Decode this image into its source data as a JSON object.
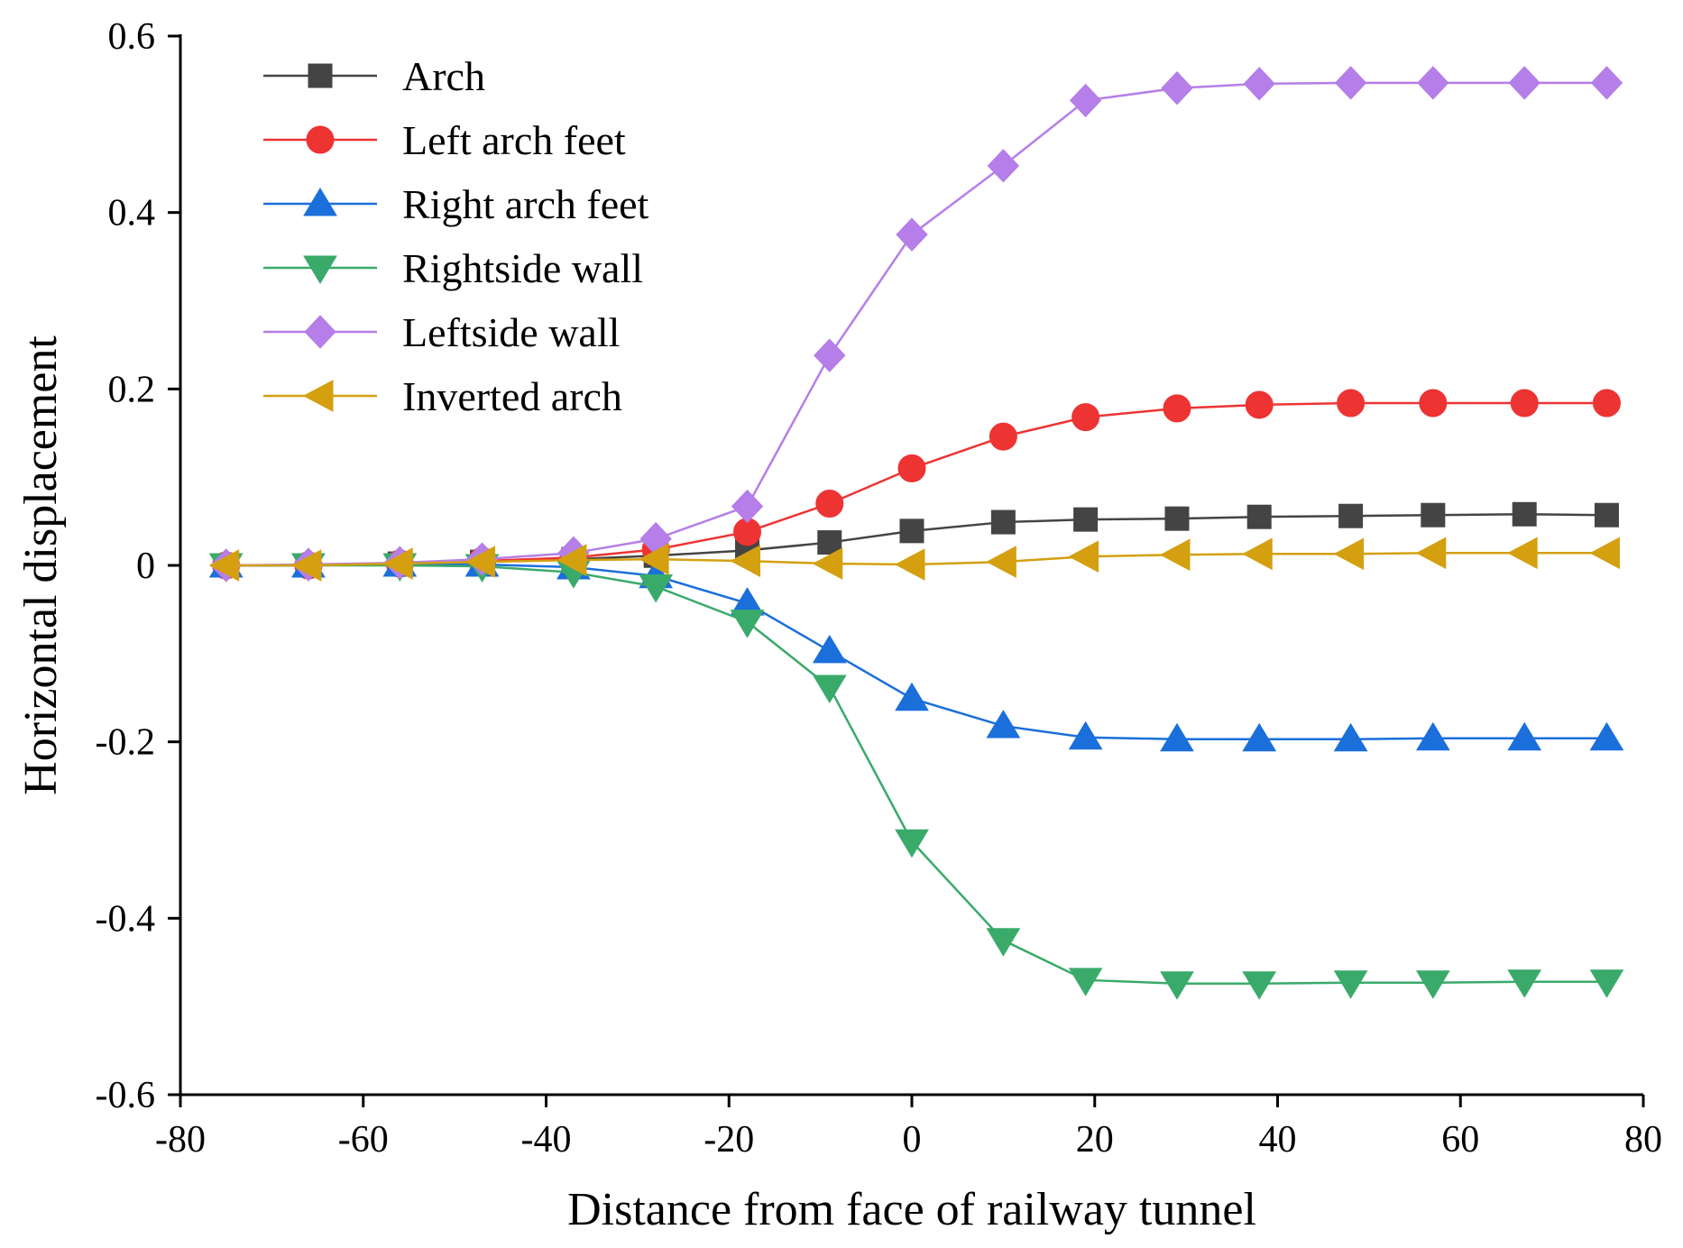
{
  "chart_data": {
    "type": "line",
    "title": "",
    "xlabel": "Distance from face of railway tunnel",
    "ylabel": "Horizontal displacement",
    "xlim": [
      -80,
      80
    ],
    "ylim": [
      -0.6,
      0.6
    ],
    "x_ticks": [
      -80,
      -60,
      -40,
      -20,
      0,
      20,
      40,
      60,
      80
    ],
    "x_tick_labels": [
      "-80",
      "-60",
      "-40",
      "-20",
      "0",
      "20",
      "40",
      "60",
      "80"
    ],
    "y_ticks": [
      -0.6,
      -0.4,
      -0.2,
      0,
      0.2,
      0.4,
      0.6
    ],
    "y_tick_labels": [
      "-0.6",
      "-0.4",
      "-0.2",
      "0",
      "0.2",
      "0.4",
      "0.6"
    ],
    "grid": false,
    "legend_position": "top-left",
    "x": [
      -75,
      -66,
      -56,
      -47,
      -37,
      -28,
      -18,
      -9,
      0,
      10,
      19,
      29,
      38,
      48,
      57,
      67,
      76
    ],
    "series": [
      {
        "name": "Arch",
        "color": "#444444",
        "marker": "square",
        "values": [
          0,
          0,
          0.002,
          0.004,
          0.007,
          0.011,
          0.017,
          0.026,
          0.039,
          0.049,
          0.052,
          0.053,
          0.055,
          0.056,
          0.057,
          0.058,
          0.057
        ]
      },
      {
        "name": "Left arch feet",
        "color": "#ee3333",
        "marker": "circle",
        "values": [
          0,
          0,
          0.002,
          0.005,
          0.009,
          0.018,
          0.038,
          0.07,
          0.11,
          0.146,
          0.168,
          0.178,
          0.182,
          0.184,
          0.184,
          0.184,
          0.184
        ]
      },
      {
        "name": "Right arch feet",
        "color": "#1a6fdb",
        "marker": "triangle-up",
        "values": [
          0,
          0,
          0.001,
          0.001,
          -0.002,
          -0.012,
          -0.043,
          -0.097,
          -0.151,
          -0.182,
          -0.195,
          -0.197,
          -0.197,
          -0.197,
          -0.196,
          -0.196,
          -0.196
        ]
      },
      {
        "name": "Rightside wall",
        "color": "#3aaa6a",
        "marker": "triangle-down",
        "values": [
          0,
          0,
          0,
          -0.001,
          -0.008,
          -0.024,
          -0.064,
          -0.138,
          -0.313,
          -0.425,
          -0.47,
          -0.474,
          -0.474,
          -0.473,
          -0.473,
          -0.472,
          -0.472
        ]
      },
      {
        "name": "Leftside wall",
        "color": "#b57ee8",
        "marker": "diamond",
        "values": [
          0,
          0.001,
          0.003,
          0.007,
          0.014,
          0.03,
          0.067,
          0.238,
          0.375,
          0.453,
          0.527,
          0.541,
          0.546,
          0.547,
          0.547,
          0.547,
          0.547
        ]
      },
      {
        "name": "Inverted arch",
        "color": "#d4a010",
        "marker": "triangle-left",
        "values": [
          0,
          0,
          0.002,
          0.004,
          0.006,
          0.007,
          0.005,
          0.002,
          0.001,
          0.004,
          0.01,
          0.012,
          0.013,
          0.013,
          0.014,
          0.014,
          0.014
        ]
      }
    ]
  }
}
